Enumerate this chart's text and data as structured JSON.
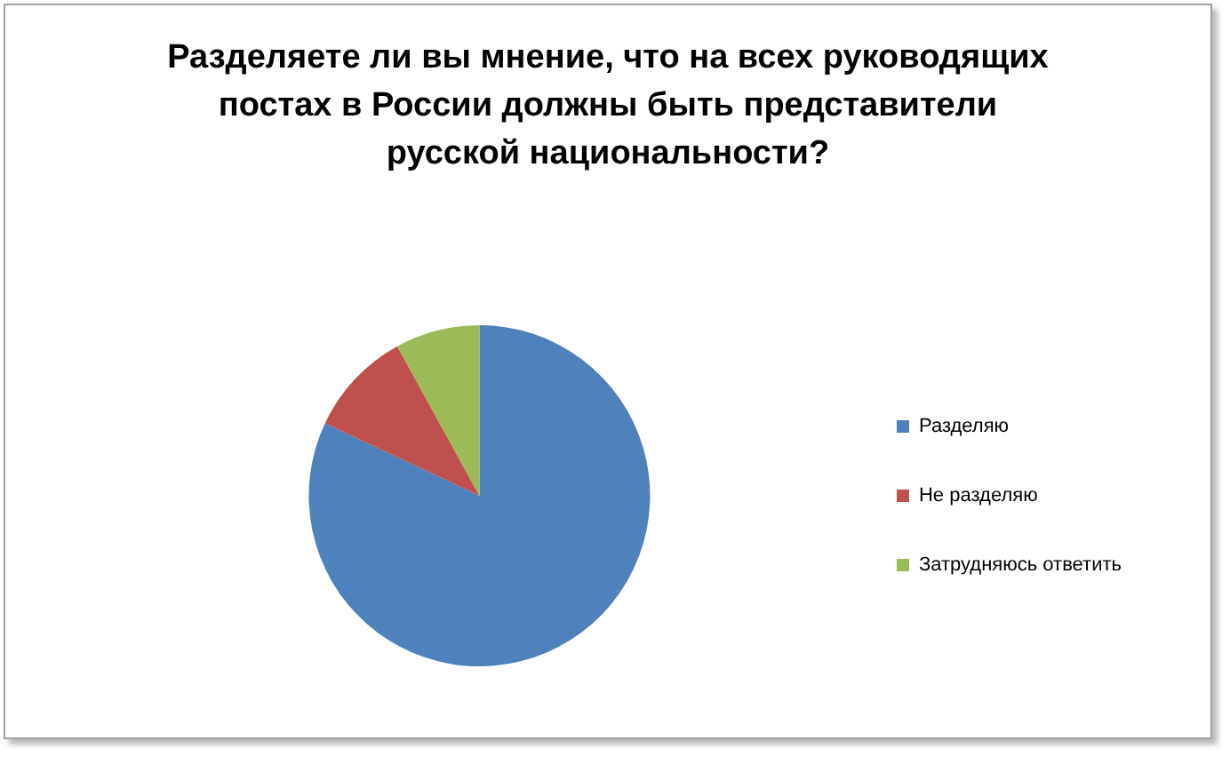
{
  "chart_data": {
    "type": "pie",
    "title": "Разделяете ли вы мнение, что на всех руководящих постах в России должны быть представители русской национальности?",
    "categories": [
      "Разделяю",
      "Не разделяю",
      "Затрудняюсь ответить"
    ],
    "values": [
      82,
      10,
      8
    ],
    "colors": [
      "#4f81bd",
      "#c0504d",
      "#9bbb59"
    ],
    "legend": "right"
  }
}
